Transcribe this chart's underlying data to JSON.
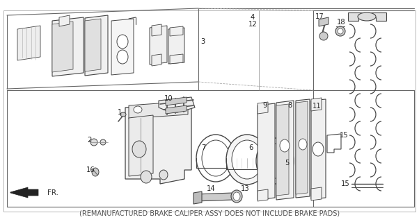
{
  "footer_text": "(REMANUFACTURED BRAKE CALIPER ASSY DOES NOT INCLUDE BRAKE PADS)",
  "bg_color": "#ffffff",
  "fig_width": 6.02,
  "fig_height": 3.2,
  "dpi": 100,
  "lc": "#444444",
  "lc_light": "#888888",
  "fc_part": "#f2f2f2",
  "fc_white": "#ffffff"
}
